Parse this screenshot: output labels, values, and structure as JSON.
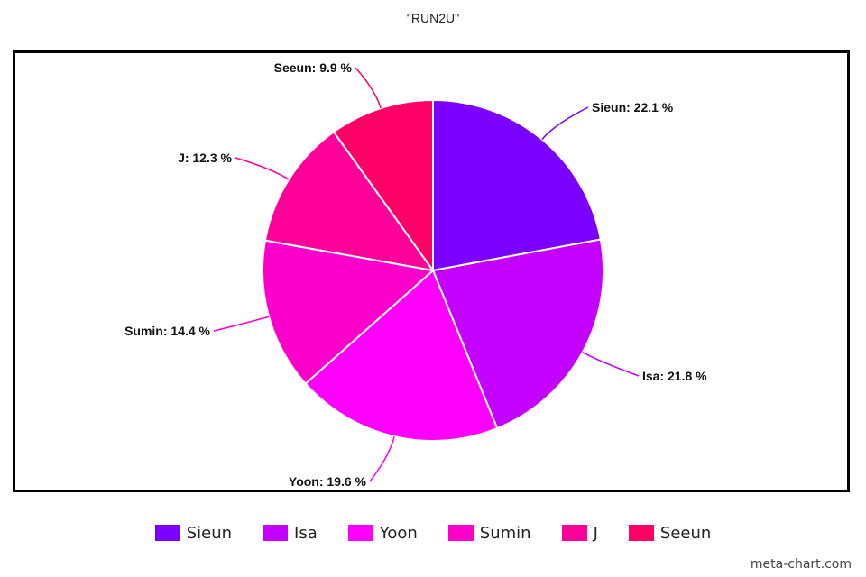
{
  "chart_data": {
    "type": "pie",
    "title": "\"RUN2U\"",
    "categories": [
      "Sieun",
      "Isa",
      "Yoon",
      "Sumin",
      "J",
      "Seeun"
    ],
    "values": [
      22.1,
      21.8,
      19.6,
      14.4,
      12.3,
      9.9
    ],
    "unit": "%",
    "colors": [
      "#7a00ff",
      "#c400ff",
      "#ff00ff",
      "#ff00cc",
      "#ff0099",
      "#ff0066"
    ],
    "data_labels": [
      "Sieun: 22.1 %",
      "Isa: 21.8 %",
      "Yoon: 19.6 %",
      "Sumin: 14.4 %",
      "J: 12.3 %",
      "Seeun: 9.9 %"
    ],
    "legend_position": "bottom",
    "start_angle": "top, clockwise"
  },
  "footer": {
    "credit": "meta-chart.com"
  }
}
